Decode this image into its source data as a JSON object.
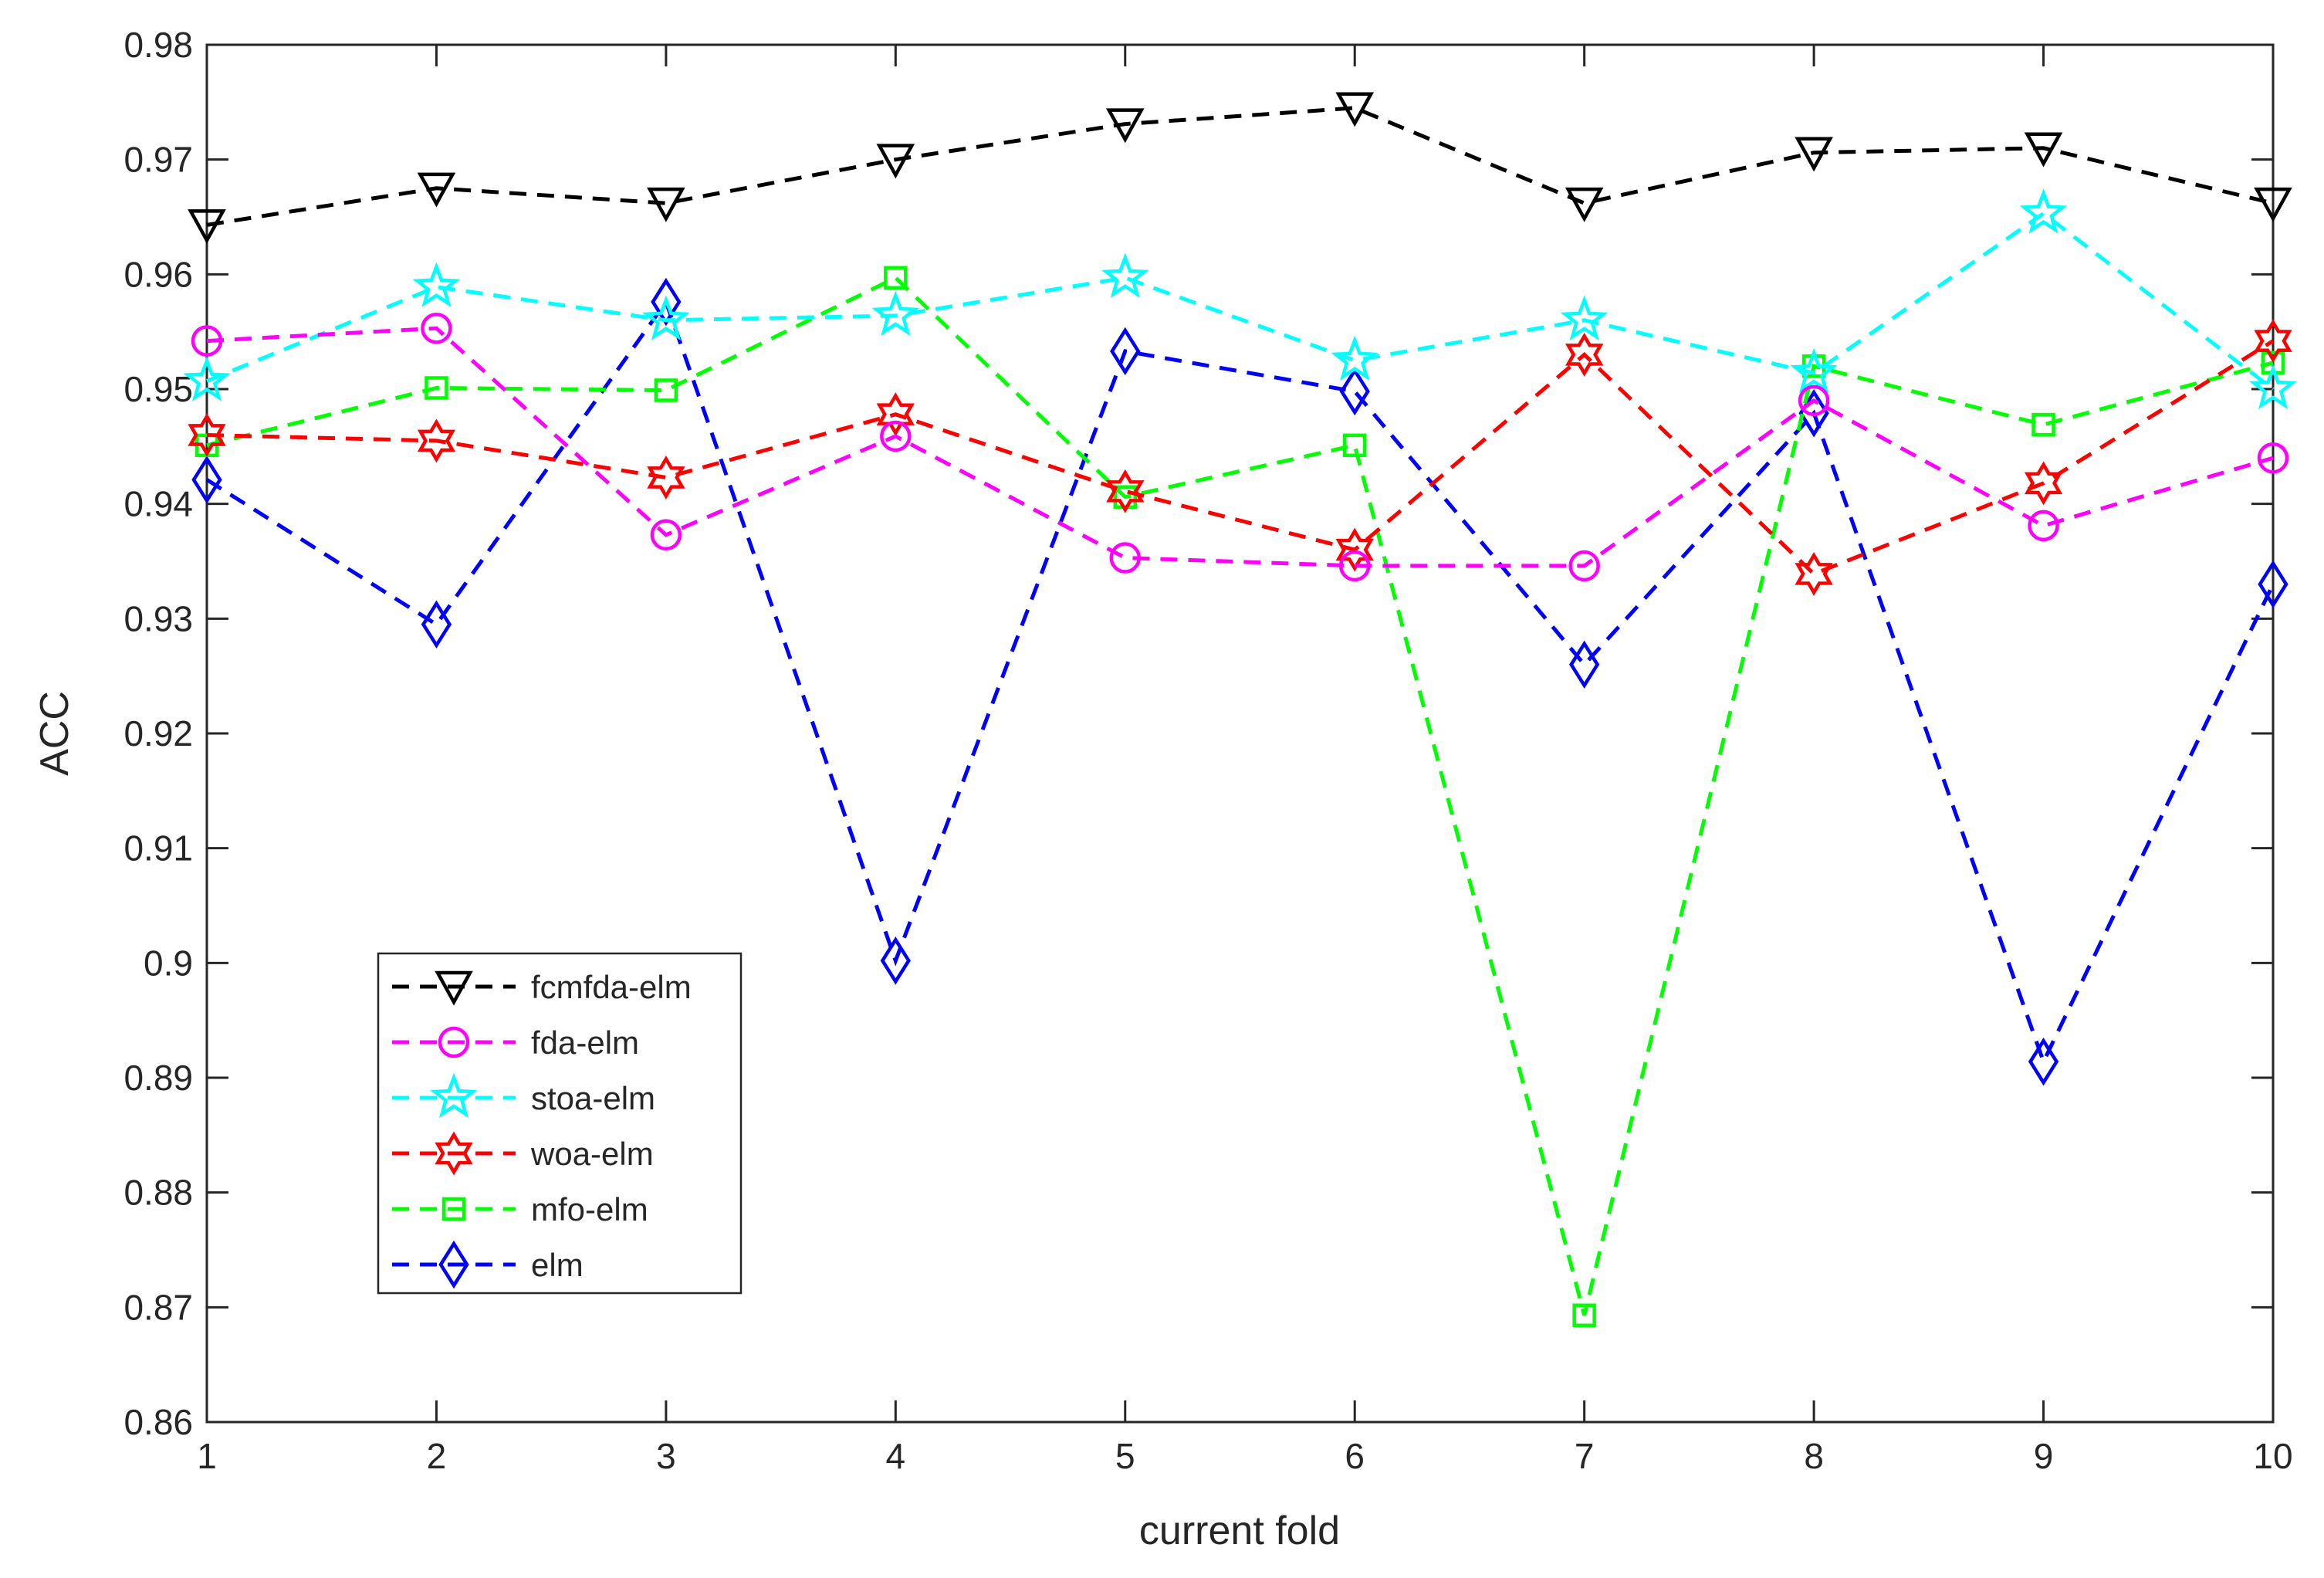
{
  "chart_data": {
    "type": "line",
    "title": "",
    "xlabel": "current fold",
    "ylabel": "ACC",
    "xlim": [
      1,
      10
    ],
    "ylim": [
      0.86,
      0.98
    ],
    "xticks": [
      "1",
      "2",
      "3",
      "4",
      "5",
      "6",
      "7",
      "8",
      "9",
      "10"
    ],
    "yticks": [
      "0.86",
      "0.87",
      "0.88",
      "0.89",
      "0.9",
      "0.91",
      "0.92",
      "0.93",
      "0.94",
      "0.95",
      "0.96",
      "0.97",
      "0.98"
    ],
    "grid": false,
    "legend_position": "lower-left",
    "x": [
      1,
      2,
      3,
      4,
      5,
      6,
      7,
      8,
      9,
      10
    ],
    "series": [
      {
        "name": "fcmfda-elm",
        "color": "#000000",
        "marker": "triangle-down",
        "values": [
          0.9643,
          0.9675,
          0.9662,
          0.97,
          0.9731,
          0.9745,
          0.9662,
          0.9706,
          0.971,
          0.9662
        ]
      },
      {
        "name": "fda-elm",
        "color": "#ff00ff",
        "marker": "circle",
        "values": [
          0.9542,
          0.9553,
          0.9373,
          0.9459,
          0.9353,
          0.9346,
          0.9346,
          0.949,
          0.9381,
          0.944
        ]
      },
      {
        "name": "stoa-elm",
        "color": "#00ffff",
        "marker": "star",
        "values": [
          0.9507,
          0.9589,
          0.956,
          0.9564,
          0.9597,
          0.9525,
          0.956,
          0.9514,
          0.9653,
          0.95
        ]
      },
      {
        "name": "woa-elm",
        "color": "#ff0000",
        "marker": "hexagram",
        "values": [
          0.946,
          0.9455,
          0.9423,
          0.9478,
          0.9411,
          0.936,
          0.953,
          0.9339,
          0.9418,
          0.9542
        ]
      },
      {
        "name": "mfo-elm",
        "color": "#00ff00",
        "marker": "square",
        "values": [
          0.9451,
          0.9501,
          0.9499,
          0.9597,
          0.9406,
          0.9451,
          0.8693,
          0.952,
          0.9469,
          0.9523
        ]
      },
      {
        "name": "elm",
        "color": "#0000ff",
        "marker": "diamond",
        "values": [
          0.9421,
          0.9295,
          0.9576,
          0.9002,
          0.9533,
          0.9498,
          0.926,
          0.9479,
          0.8914,
          0.933
        ]
      }
    ]
  }
}
